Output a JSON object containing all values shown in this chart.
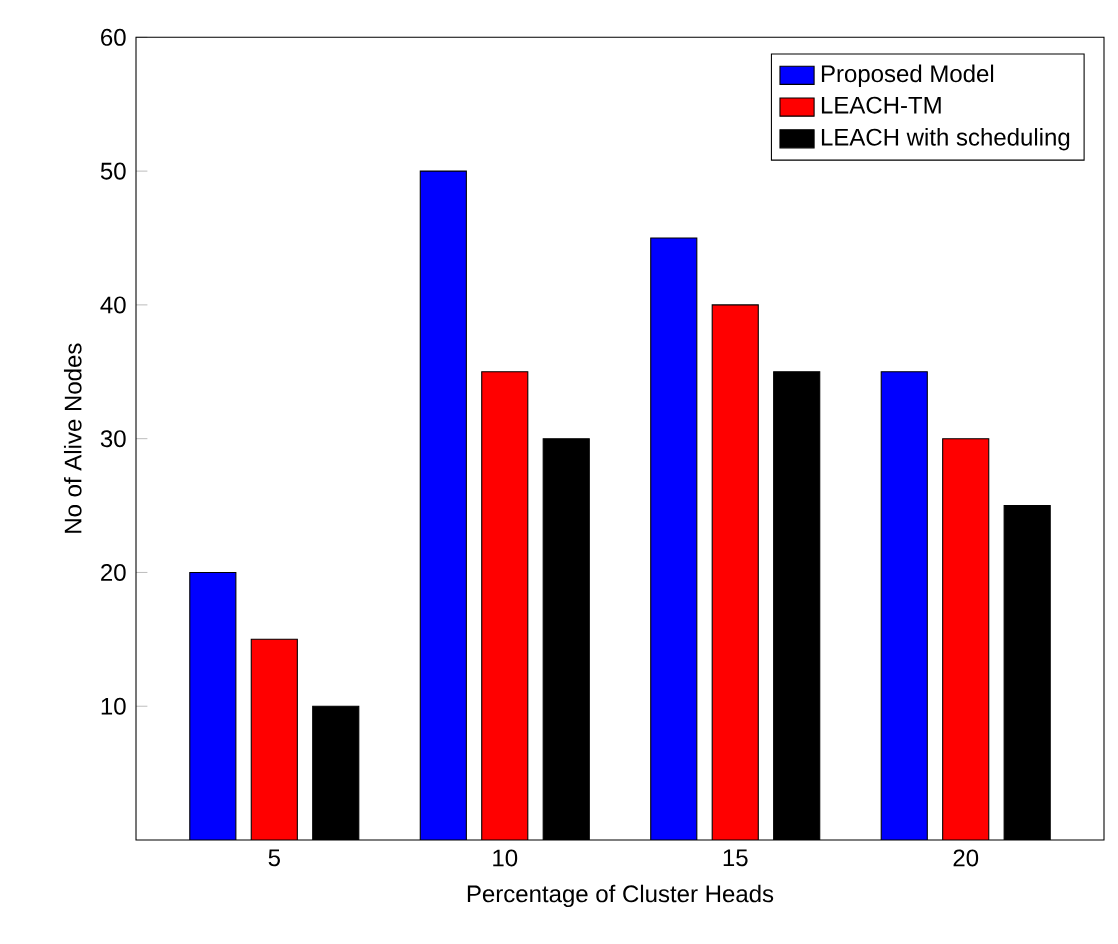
{
  "chart_data": {
    "type": "bar",
    "xlabel": "Percentage of Cluster Heads",
    "ylabel": "No of Alive Nodes",
    "categories": [
      "5",
      "10",
      "15",
      "20"
    ],
    "series": [
      {
        "name": "Proposed Model",
        "color": "#0000ff",
        "values": [
          20,
          50,
          45,
          35
        ]
      },
      {
        "name": "LEACH-TM",
        "color": "#ff0000",
        "values": [
          15,
          35,
          40,
          30
        ]
      },
      {
        "name": "LEACH with scheduling",
        "color": "#000000",
        "values": [
          10,
          30,
          35,
          25
        ]
      }
    ],
    "ylim": [
      0,
      60
    ],
    "yticks": [
      10,
      20,
      30,
      40,
      50,
      60
    ],
    "legend": "top right",
    "grid": false
  }
}
